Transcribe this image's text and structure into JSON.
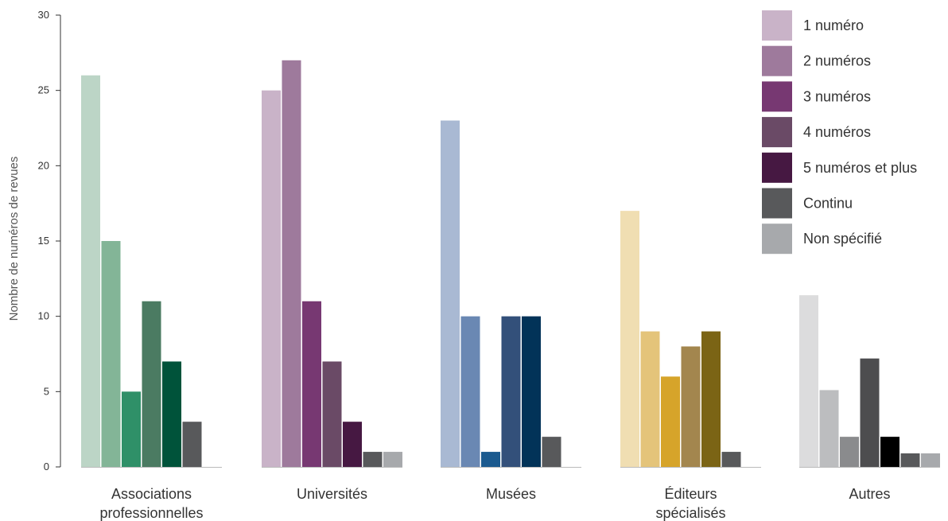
{
  "chart_data": {
    "type": "bar",
    "title": "",
    "xlabel": "",
    "ylabel": "Nombre de numéros de revues",
    "ylim": [
      0,
      30
    ],
    "yticks": [
      0,
      5,
      10,
      15,
      20,
      25,
      30
    ],
    "grid": false,
    "legend_position": "top-right",
    "categories": [
      [
        "Associations",
        "professionnelles"
      ],
      [
        "Universités"
      ],
      [
        "Musées"
      ],
      [
        "Éditeurs",
        "spécialisés"
      ],
      [
        "Autres"
      ]
    ],
    "series": [
      {
        "name": "1 numéro",
        "values": [
          26,
          25,
          23,
          17,
          11.4
        ]
      },
      {
        "name": "2 numéros",
        "values": [
          15,
          27,
          10,
          9,
          5.1
        ]
      },
      {
        "name": "3 numéros",
        "values": [
          5,
          11,
          1,
          6,
          2
        ]
      },
      {
        "name": "4 numéros",
        "values": [
          11,
          7,
          10,
          8,
          7.2
        ]
      },
      {
        "name": "5 numéros et plus",
        "values": [
          7,
          3,
          10,
          9,
          2
        ]
      },
      {
        "name": "Continu",
        "values": [
          3,
          1,
          2,
          1,
          0.9
        ]
      },
      {
        "name": "Non spécifié",
        "values": [
          0,
          1,
          0,
          0,
          0.9
        ]
      }
    ],
    "colors": {
      "legend": [
        "#c9b3c8",
        "#9e7a9c",
        "#773872",
        "#6a4a66",
        "#461842",
        "#58595b",
        "#a7a9ac"
      ],
      "by_category": [
        [
          "#bcd5c6",
          "#83b597",
          "#2f9068",
          "#4b7b62",
          "#00533a",
          "#58595b",
          "#a7a9ac"
        ],
        [
          "#c9b3c8",
          "#9e7a9c",
          "#773872",
          "#6a4a66",
          "#461842",
          "#58595b",
          "#a7a9ac"
        ],
        [
          "#a9b9d3",
          "#6a88b3",
          "#1b5a8f",
          "#33507a",
          "#023358",
          "#58595b",
          "#a7a9ac"
        ],
        [
          "#f0deb2",
          "#e4c47a",
          "#d6a42a",
          "#a3864e",
          "#7b6415",
          "#58595b",
          "#a7a9ac"
        ],
        [
          "#dcdcdd",
          "#bcbdbf",
          "#8a8b8d",
          "#4d4d4f",
          "#000000",
          "#58595b",
          "#a7a9ac"
        ]
      ]
    }
  }
}
